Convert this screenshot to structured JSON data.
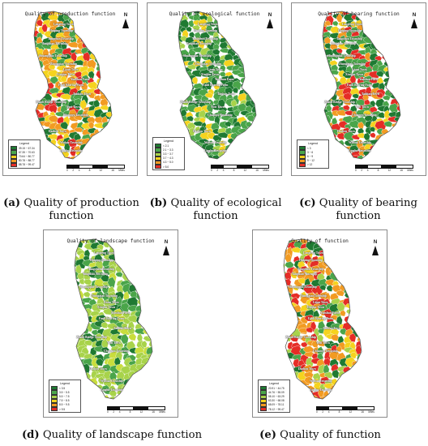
{
  "colors": {
    "dark_green": "#1f7a32",
    "green": "#4aa54a",
    "light_green": "#a8d34a",
    "yellow": "#f5d31e",
    "orange": "#f29b22",
    "red": "#e52d26",
    "outline": "#555555"
  },
  "common": {
    "north_label": "N",
    "legend_title": "Legend",
    "scale_ticks": [
      "0",
      "2",
      "4",
      "",
      "8",
      "",
      "12",
      "",
      "16"
    ],
    "scale_unit": "Miles"
  },
  "place_names": [
    "Longfeng Town",
    "Huiping Township",
    "Tangchun Township",
    "Tangshan Township",
    "Shuangqiao Township",
    "Zhongqiao Township",
    "Lisun Town",
    "Xinqiao Town",
    "Yunshan Farm",
    "Fanli Bearing Farm",
    "Taishan Town",
    "Zhaoli Bridge Township",
    "Yuxi Town",
    "Chuanyu Township",
    "Dazhou Town",
    "Wuhua Township",
    "Linghu Township"
  ],
  "panels": [
    {
      "id": "a",
      "map_title": "Quality of production function",
      "caption_letter": "(a)",
      "caption_text": " Quality of production function",
      "legend": [
        {
          "label": "39.15 ~ 67.34",
          "color": "#1f7a32"
        },
        {
          "label": "67.35 ~ 70.63",
          "color": "#4aa54a"
        },
        {
          "label": "70.64 ~ 80.77",
          "color": "#f5d31e"
        },
        {
          "label": "80.78 ~ 88.77",
          "color": "#f29b22"
        },
        {
          "label": "88.78 ~ 99.47",
          "color": "#e52d26"
        }
      ],
      "palette": [
        "#1f7a32",
        "#4aa54a",
        "#f5d31e",
        "#f29b22",
        "#e52d26",
        "#f29b22",
        "#f5d31e",
        "#4aa54a"
      ],
      "seed": 11
    },
    {
      "id": "b",
      "map_title": "Quality of ecological function",
      "caption_letter": "(b)",
      "caption_text": " Quality of ecological function",
      "legend": [
        {
          "label": "< 2.1",
          "color": "#1f7a32"
        },
        {
          "label": "2.1 ~ 3.3",
          "color": "#4aa54a"
        },
        {
          "label": "3.3 ~ 3.7",
          "color": "#a8d34a"
        },
        {
          "label": "3.7 ~ 4.3",
          "color": "#f5d31e"
        },
        {
          "label": "4.3 ~ 5.0",
          "color": "#f29b22"
        },
        {
          "label": "> 5.0",
          "color": "#e52d26"
        }
      ],
      "palette": [
        "#1f7a32",
        "#1f7a32",
        "#4aa54a",
        "#4aa54a",
        "#a8d34a",
        "#f5d31e",
        "#1f7a32",
        "#4aa54a"
      ],
      "seed": 23
    },
    {
      "id": "c",
      "map_title": "Quality of bearing function",
      "caption_letter": "(c)",
      "caption_text": " Quality of bearing function",
      "legend": [
        {
          "label": "< 3",
          "color": "#1f7a32"
        },
        {
          "label": "3 ~ 6",
          "color": "#4aa54a"
        },
        {
          "label": "6 ~ 9",
          "color": "#f5d31e"
        },
        {
          "label": "9 ~ 12",
          "color": "#f29b22"
        },
        {
          "label": "> 12",
          "color": "#e52d26"
        }
      ],
      "palette": [
        "#1f7a32",
        "#4aa54a",
        "#e52d26",
        "#f29b22",
        "#1f7a32",
        "#e52d26",
        "#4aa54a",
        "#f5d31e"
      ],
      "seed": 37
    },
    {
      "id": "d",
      "map_title": "Quality of landscape function",
      "caption_letter": "(d)",
      "caption_text": " Quality of landscape function",
      "legend": [
        {
          "label": "< 3.5",
          "color": "#1f7a32"
        },
        {
          "label": "3.5 ~ 5.5",
          "color": "#4aa54a"
        },
        {
          "label": "5.5 ~ 7.5",
          "color": "#a8d34a"
        },
        {
          "label": "7.5 ~ 8.5",
          "color": "#f5d31e"
        },
        {
          "label": "8.5 ~ 9.5",
          "color": "#f29b22"
        },
        {
          "label": "> 9.5",
          "color": "#e52d26"
        }
      ],
      "palette": [
        "#a8d34a",
        "#a8d34a",
        "#4aa54a",
        "#a8d34a",
        "#c9dd3c",
        "#a8d34a",
        "#4aa54a",
        "#1f7a32"
      ],
      "seed": 51
    },
    {
      "id": "e",
      "map_title": "Quality of function",
      "caption_letter": "(e)",
      "caption_text": " Quality of function",
      "legend": [
        {
          "label": "20.91 ~ 44.75",
          "color": "#1f7a32"
        },
        {
          "label": "44.76 ~ 55.09",
          "color": "#4aa54a"
        },
        {
          "label": "55.10 ~ 63.29",
          "color": "#a8d34a"
        },
        {
          "label": "63.30 ~ 68.08",
          "color": "#f5d31e"
        },
        {
          "label": "68.09 ~ 78.11",
          "color": "#f29b22"
        },
        {
          "label": "78.12 ~ 99.47",
          "color": "#e52d26"
        }
      ],
      "palette": [
        "#f29b22",
        "#e52d26",
        "#f5d31e",
        "#4aa54a",
        "#f29b22",
        "#e52d26",
        "#a8d34a",
        "#1f7a32"
      ],
      "seed": 67
    }
  ]
}
